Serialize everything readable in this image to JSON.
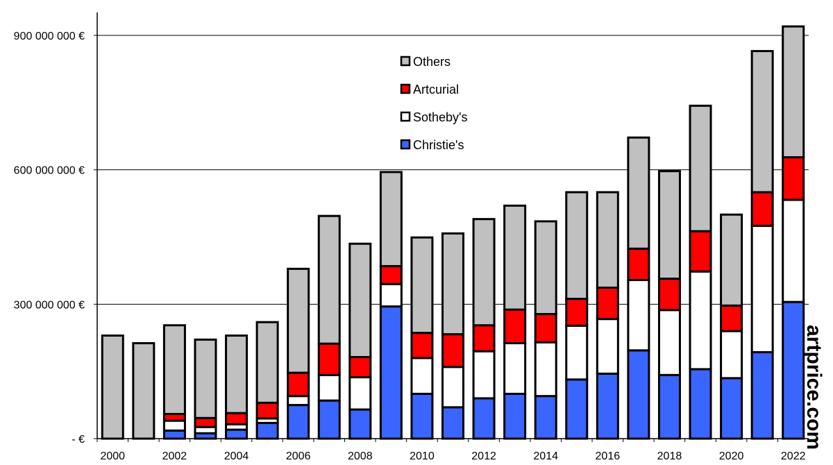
{
  "chart_data": {
    "type": "bar",
    "stacked": true,
    "categories": [
      "2000",
      "2001",
      "2002",
      "2003",
      "2004",
      "2005",
      "2006",
      "2007",
      "2008",
      "2009",
      "2010",
      "2011",
      "2012",
      "2013",
      "2014",
      "2015",
      "2016",
      "2017",
      "2018",
      "2019",
      "2020",
      "2021",
      "2022"
    ],
    "x_tick_labels": [
      "2000",
      "2002",
      "2004",
      "2006",
      "2008",
      "2010",
      "2012",
      "2014",
      "2016",
      "2018",
      "2020",
      "2022"
    ],
    "y_tick_labels": [
      {
        "value": 0,
        "label": "-   €"
      },
      {
        "value": 300000000,
        "label": "300 000 000 €"
      },
      {
        "value": 600000000,
        "label": "600 000 000 €"
      },
      {
        "value": 900000000,
        "label": "900 000 000 €"
      }
    ],
    "ylim": [
      0,
      950000000
    ],
    "grid": "horizontal",
    "legend_position": "top-center",
    "series": [
      {
        "name": "Christie's",
        "color": "#3a66ff",
        "values": [
          0,
          0,
          18000000,
          12000000,
          20000000,
          35000000,
          75000000,
          85000000,
          65000000,
          295000000,
          100000000,
          70000000,
          90000000,
          100000000,
          95000000,
          132000000,
          145000000,
          197000000,
          142000000,
          155000000,
          135000000,
          193000000,
          305000000
        ]
      },
      {
        "name": "Sotheby's",
        "color": "#ffffff",
        "values": [
          0,
          0,
          22000000,
          14000000,
          12000000,
          10000000,
          20000000,
          57000000,
          72000000,
          50000000,
          80000000,
          90000000,
          105000000,
          113000000,
          120000000,
          120000000,
          122000000,
          157000000,
          145000000,
          218000000,
          105000000,
          282000000,
          228000000
        ]
      },
      {
        "name": "Artcurial",
        "color": "#ff0000",
        "values": [
          0,
          0,
          15000000,
          20000000,
          25000000,
          35000000,
          52000000,
          70000000,
          45000000,
          40000000,
          56000000,
          73000000,
          58000000,
          75000000,
          63000000,
          60000000,
          70000000,
          70000000,
          70000000,
          90000000,
          57000000,
          75000000,
          95000000
        ]
      },
      {
        "name": "Others",
        "color": "#c0c0c0",
        "values": [
          230000000,
          213000000,
          198000000,
          175000000,
          173000000,
          180000000,
          232000000,
          285000000,
          253000000,
          210000000,
          213000000,
          225000000,
          237000000,
          232000000,
          207000000,
          238000000,
          213000000,
          248000000,
          240000000,
          280000000,
          203000000,
          315000000,
          292000000
        ]
      }
    ],
    "legend": [
      "Others",
      "Artcurial",
      "Sotheby's",
      "Christie's"
    ]
  },
  "colors": {
    "Christie's": "#3a66ff",
    "Sotheby's": "#ffffff",
    "Artcurial": "#ff0000",
    "Others": "#c0c0c0"
  },
  "brand": "artprice.com"
}
